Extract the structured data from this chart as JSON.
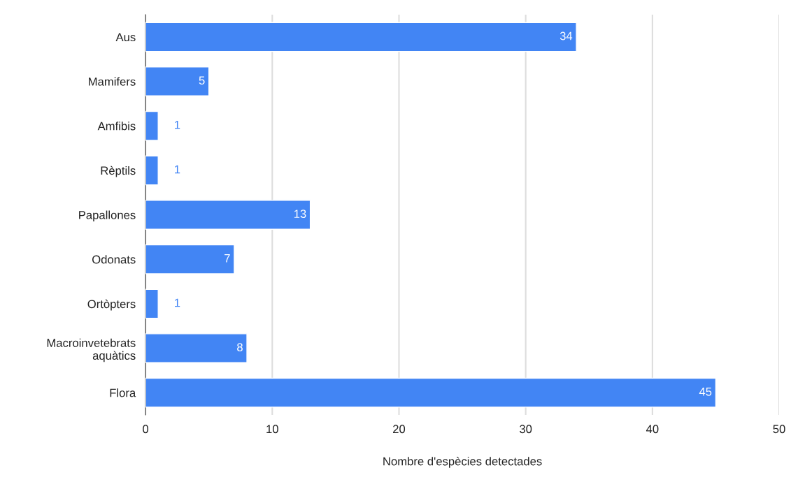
{
  "chart_data": {
    "type": "bar",
    "orientation": "horizontal",
    "xlabel": "Nombre d'espècies detectades",
    "categories": [
      "Aus",
      "Mamifers",
      "Amfibis",
      "Rèptils",
      "Papallones",
      "Odonats",
      "Ortòpters",
      "Macroinvetebrats\naquàtics",
      "Flora"
    ],
    "values": [
      34,
      5,
      1,
      1,
      13,
      7,
      1,
      8,
      45
    ],
    "color": "#4285f4",
    "xlim": [
      0,
      50
    ],
    "xticks": [
      0,
      10,
      20,
      30,
      40,
      50
    ],
    "grid": "x",
    "data_labels": true,
    "legend": false
  }
}
